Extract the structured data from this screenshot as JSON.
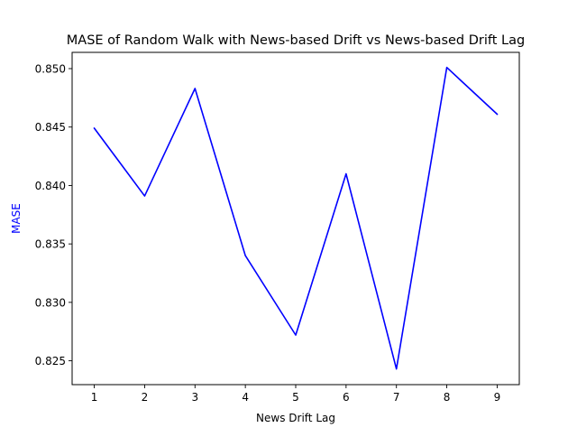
{
  "chart_data": {
    "type": "line",
    "title": "MASE of Random Walk with News-based Drift vs News-based Drift Lag",
    "xlabel": "News Drift Lag",
    "ylabel": "MASE",
    "ylabel_color": "#0000ff",
    "line_color": "#0000ff",
    "x": [
      1,
      2,
      3,
      4,
      5,
      6,
      7,
      8,
      9
    ],
    "series": [
      {
        "values": [
          0.8449,
          0.8391,
          0.8483,
          0.834,
          0.8272,
          0.841,
          0.8243,
          0.8501,
          0.8461
        ]
      }
    ],
    "xlim": [
      0.56,
      9.44
    ],
    "ylim": [
      0.82296,
      0.85139
    ],
    "xticks": [
      1,
      2,
      3,
      4,
      5,
      6,
      7,
      8,
      9
    ],
    "xtick_labels": [
      "1",
      "2",
      "3",
      "4",
      "5",
      "6",
      "7",
      "8",
      "9"
    ],
    "yticks": [
      0.825,
      0.83,
      0.835,
      0.84,
      0.845,
      0.85
    ],
    "ytick_labels": [
      "0.825",
      "0.830",
      "0.835",
      "0.840",
      "0.845",
      "0.850"
    ],
    "grid": false,
    "legend": "none"
  }
}
